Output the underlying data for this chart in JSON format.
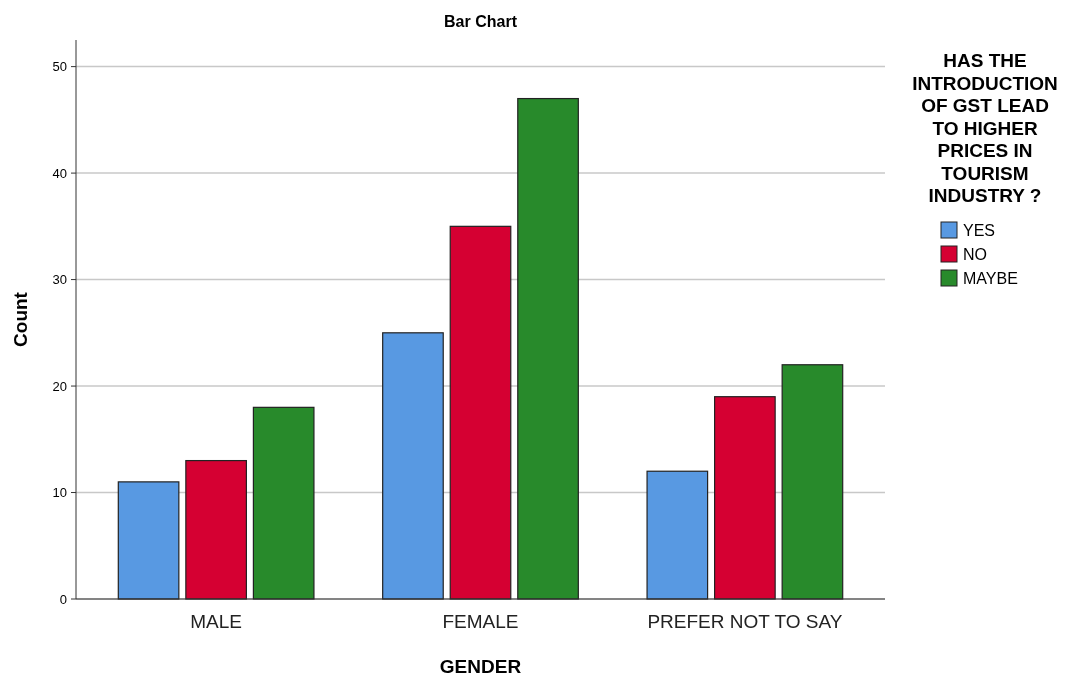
{
  "chart_data": {
    "type": "bar",
    "title": "Bar Chart",
    "xlabel": "GENDER",
    "ylabel": "Count",
    "legend_title": "HAS THE INTRODUCTION OF GST LEAD TO HIGHER PRICES IN TOURISM INDUSTRY ?",
    "categories": [
      "MALE",
      "FEMALE",
      "PREFER NOT TO SAY"
    ],
    "series": [
      {
        "name": "YES",
        "color": "#5899e2",
        "values": [
          11,
          25,
          12
        ]
      },
      {
        "name": "NO",
        "color": "#d50032",
        "values": [
          13,
          35,
          19
        ]
      },
      {
        "name": "MAYBE",
        "color": "#288a2b",
        "values": [
          18,
          47,
          22
        ]
      }
    ],
    "ylim": [
      0,
      52.5
    ],
    "yticks": [
      0,
      10,
      20,
      30,
      40,
      50
    ],
    "grid": "y",
    "legend": "right"
  }
}
